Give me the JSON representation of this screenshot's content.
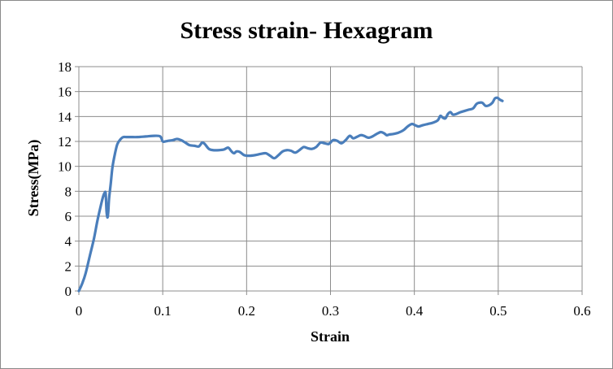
{
  "chart_data": {
    "type": "scatter",
    "title": "Stress strain- Hexagram",
    "xlabel": "Strain",
    "ylabel": "Stress(MPa)",
    "xlim": [
      0,
      0.6
    ],
    "ylim": [
      0,
      18
    ],
    "xticks": [
      0,
      0.1,
      0.2,
      0.3,
      0.4,
      0.5,
      0.6
    ],
    "xtick_labels": [
      "0",
      "0.1",
      "0.2",
      "0.3",
      "0.4",
      "0.5",
      "0.6"
    ],
    "yticks": [
      0,
      2,
      4,
      6,
      8,
      10,
      12,
      14,
      16,
      18
    ],
    "ytick_labels": [
      "0",
      "2",
      "4",
      "6",
      "8",
      "10",
      "12",
      "14",
      "16",
      "18"
    ],
    "grid": true,
    "legend": "none",
    "line_color": "#4a7ebb",
    "series": [
      {
        "style": "smooth-line",
        "x": [
          0,
          0.004,
          0.008,
          0.013,
          0.018,
          0.022,
          0.026,
          0.029,
          0.031,
          0.032,
          0.033,
          0.034,
          0.035,
          0.036,
          0.038,
          0.04,
          0.043,
          0.046,
          0.05,
          0.053,
          0.057,
          0.062,
          0.07,
          0.08,
          0.09,
          0.097,
          0.1,
          0.103,
          0.107,
          0.112,
          0.117,
          0.122,
          0.127,
          0.132,
          0.138,
          0.143,
          0.147,
          0.15,
          0.155,
          0.16,
          0.167,
          0.173,
          0.178,
          0.182,
          0.185,
          0.188,
          0.192,
          0.197,
          0.203,
          0.21,
          0.217,
          0.223,
          0.228,
          0.233,
          0.238,
          0.243,
          0.248,
          0.253,
          0.258,
          0.263,
          0.268,
          0.273,
          0.278,
          0.283,
          0.288,
          0.293,
          0.298,
          0.303,
          0.308,
          0.313,
          0.318,
          0.323,
          0.327,
          0.331,
          0.336,
          0.34,
          0.345,
          0.35,
          0.355,
          0.36,
          0.364,
          0.367,
          0.37,
          0.375,
          0.381,
          0.387,
          0.392,
          0.397,
          0.401,
          0.405,
          0.41,
          0.416,
          0.422,
          0.428,
          0.431,
          0.434,
          0.437,
          0.44,
          0.443,
          0.446,
          0.45,
          0.455,
          0.46,
          0.465,
          0.47,
          0.474,
          0.477,
          0.481,
          0.485,
          0.489,
          0.493,
          0.496,
          0.499,
          0.502,
          0.505
        ],
        "y": [
          0,
          0.6,
          1.4,
          2.8,
          4.2,
          5.6,
          6.8,
          7.6,
          7.9,
          7.8,
          6.4,
          5.9,
          6.3,
          7.4,
          8.6,
          9.9,
          11.0,
          11.8,
          12.2,
          12.35,
          12.35,
          12.35,
          12.35,
          12.4,
          12.45,
          12.4,
          12.0,
          12.0,
          12.05,
          12.1,
          12.2,
          12.1,
          11.9,
          11.7,
          11.65,
          11.6,
          11.9,
          11.8,
          11.4,
          11.3,
          11.3,
          11.35,
          11.5,
          11.2,
          11.05,
          11.2,
          11.15,
          10.9,
          10.85,
          10.9,
          11.0,
          11.05,
          10.85,
          10.65,
          10.9,
          11.2,
          11.3,
          11.25,
          11.1,
          11.3,
          11.55,
          11.45,
          11.4,
          11.55,
          11.9,
          11.85,
          11.8,
          12.1,
          12.05,
          11.85,
          12.1,
          12.45,
          12.25,
          12.35,
          12.5,
          12.45,
          12.3,
          12.4,
          12.6,
          12.75,
          12.65,
          12.5,
          12.55,
          12.6,
          12.7,
          12.9,
          13.2,
          13.4,
          13.3,
          13.2,
          13.3,
          13.4,
          13.5,
          13.7,
          14.05,
          13.9,
          13.85,
          14.2,
          14.35,
          14.15,
          14.2,
          14.35,
          14.45,
          14.55,
          14.65,
          15.0,
          15.1,
          15.1,
          14.85,
          14.9,
          15.1,
          15.45,
          15.5,
          15.35,
          15.25
        ]
      }
    ]
  }
}
